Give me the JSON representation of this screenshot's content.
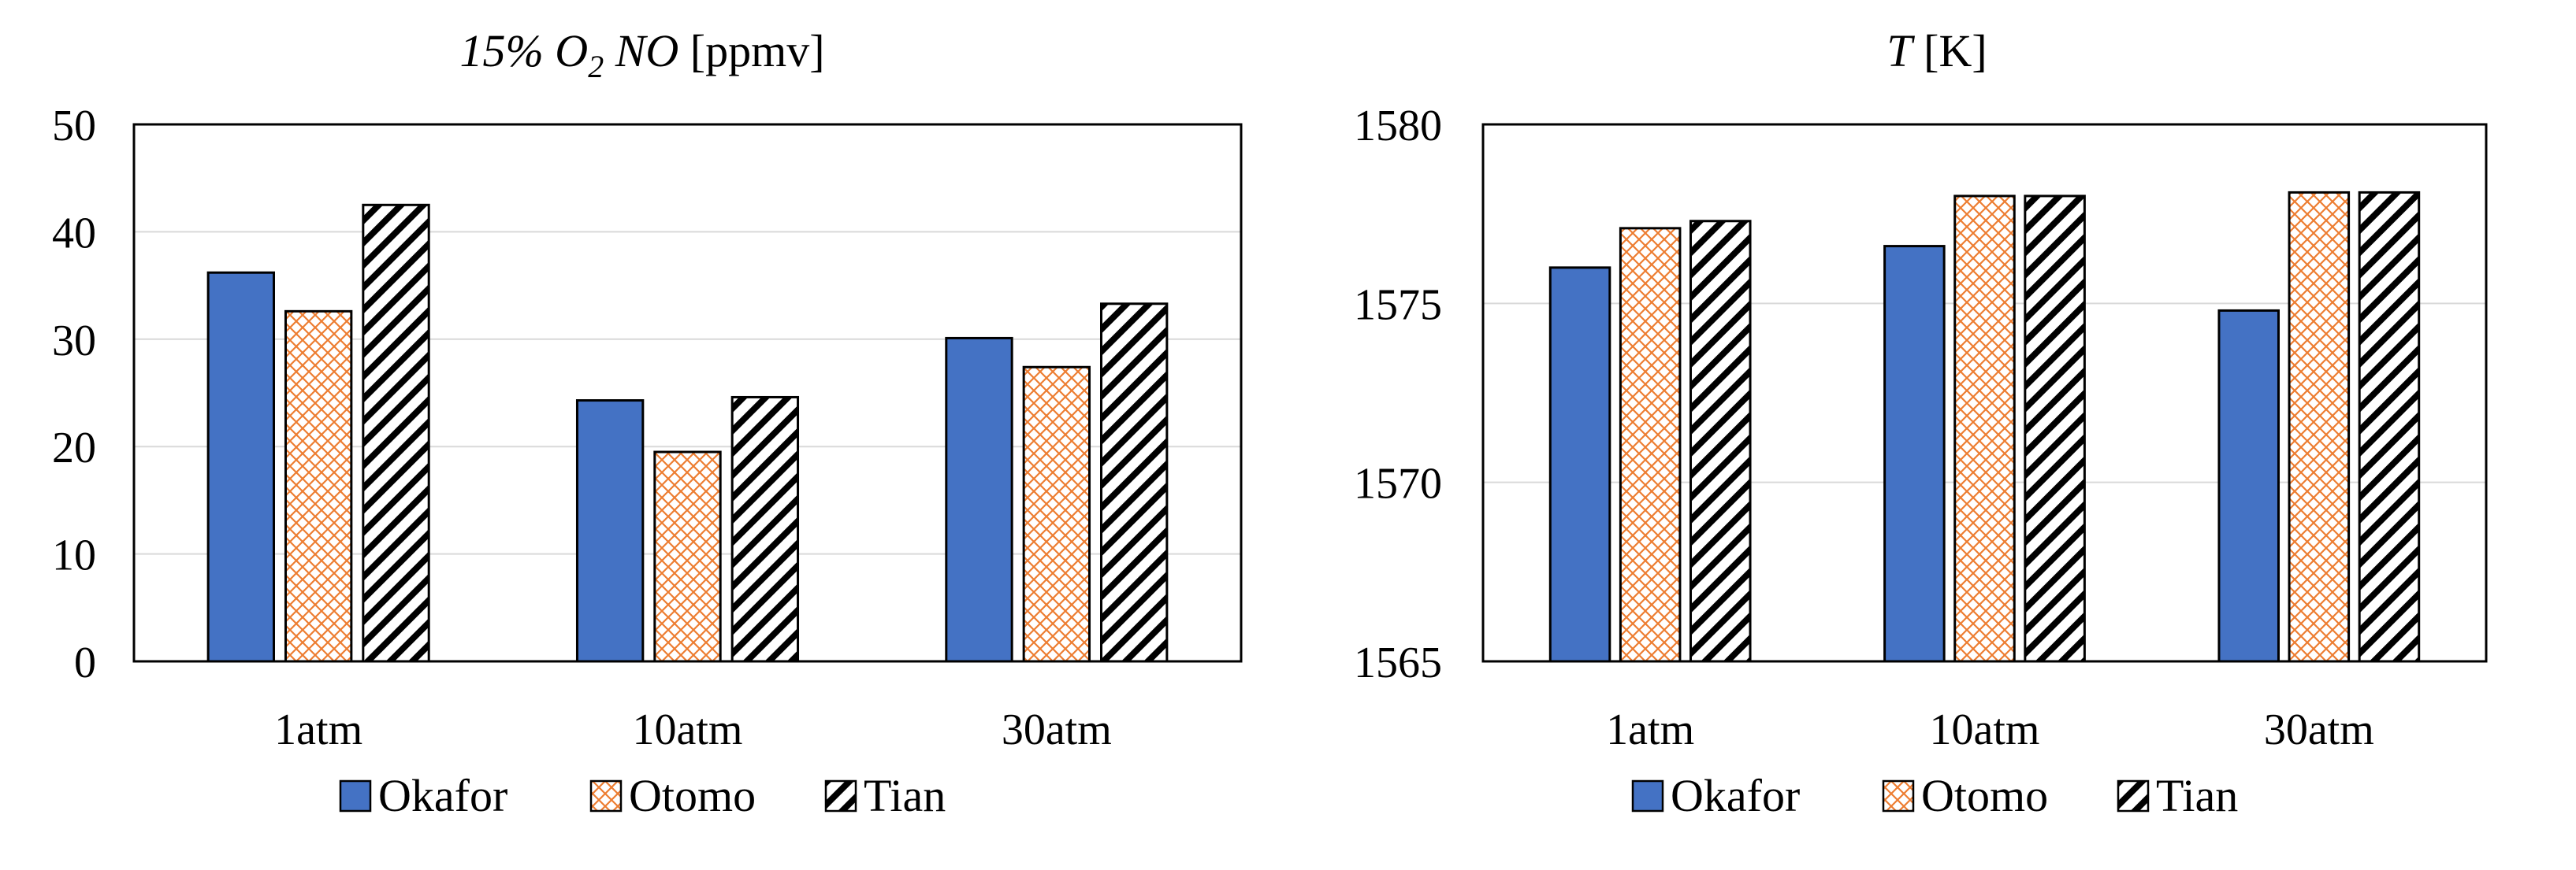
{
  "colors": {
    "okafor": "#4472C4",
    "otomo_pattern": "#ED7D31",
    "tian_pattern": "#000000",
    "axis": "#000000",
    "grid": "#D9D9D9"
  },
  "chart_data": [
    {
      "type": "bar",
      "title": "15% O",
      "title_parts": {
        "prefix": "15% O",
        "subscript": "2",
        "suffix": " NO",
        "unit": " [ppmv]"
      },
      "categories": [
        "1atm",
        "10atm",
        "30atm"
      ],
      "series": [
        {
          "name": "Okafor",
          "values": [
            36.2,
            24.3,
            30.1
          ],
          "fill": "solid-blue"
        },
        {
          "name": "Otomo",
          "values": [
            32.6,
            19.5,
            27.4
          ],
          "fill": "orange-crosshatch"
        },
        {
          "name": "Tian",
          "values": [
            42.5,
            24.6,
            33.3
          ],
          "fill": "black-diagonal"
        }
      ],
      "ylim": [
        0,
        50
      ],
      "yticks": [
        "0",
        "10",
        "20",
        "30",
        "40",
        "50"
      ],
      "ytick_values": [
        0,
        10,
        20,
        30,
        40,
        50
      ],
      "grid": true,
      "legend_position": "bottom"
    },
    {
      "type": "bar",
      "title": "T",
      "title_parts": {
        "prefix": "T",
        "unit": " [K]"
      },
      "categories": [
        "1atm",
        "10atm",
        "30atm"
      ],
      "series": [
        {
          "name": "Okafor",
          "values": [
            1576.0,
            1576.6,
            1574.8
          ],
          "fill": "solid-blue"
        },
        {
          "name": "Otomo",
          "values": [
            1577.1,
            1578.0,
            1578.1
          ],
          "fill": "orange-crosshatch"
        },
        {
          "name": "Tian",
          "values": [
            1577.3,
            1578.0,
            1578.1
          ],
          "fill": "black-diagonal"
        }
      ],
      "ylim": [
        1565,
        1580
      ],
      "yticks": [
        "1565",
        "1570",
        "1575",
        "1580"
      ],
      "ytick_values": [
        1565,
        1570,
        1575,
        1580
      ],
      "grid": true,
      "legend_position": "bottom"
    }
  ]
}
